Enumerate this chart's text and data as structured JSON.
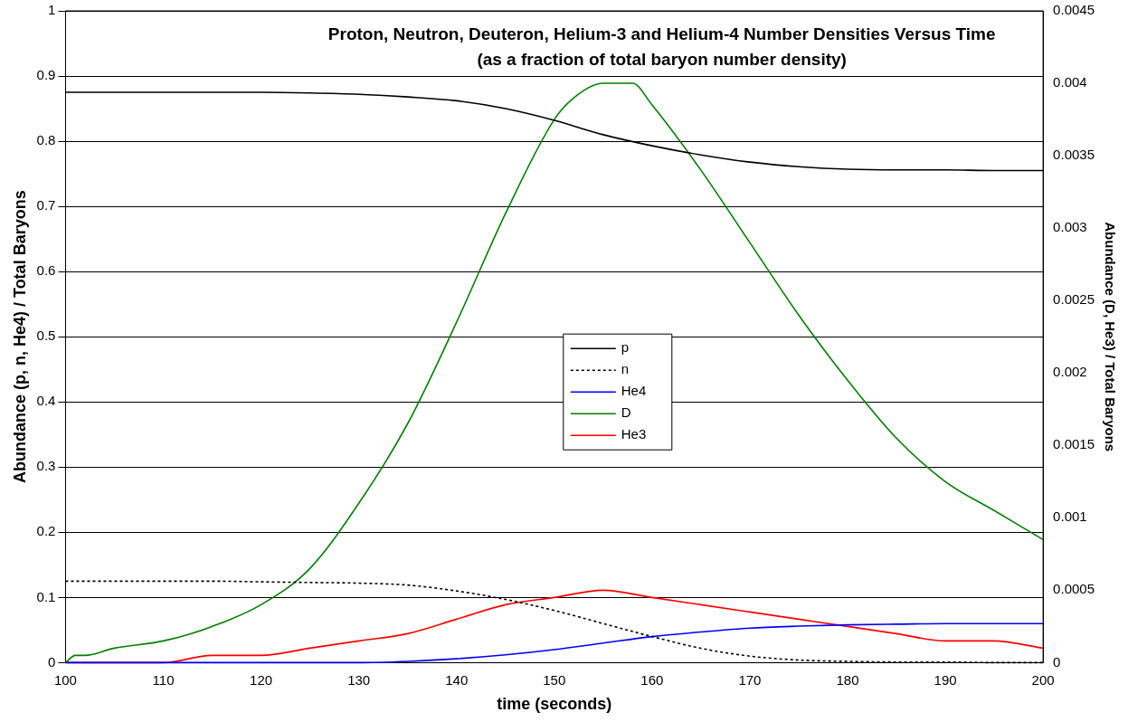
{
  "chart_data": {
    "type": "line",
    "title": "Proton, Neutron, Deuteron, Helium-3 and Helium-4 Number Densities Versus Time",
    "subtitle": "(as a fraction of total baryon number density)",
    "xlabel": "time (seconds)",
    "ylabel": "Abundance (p, n, He4) / Total Baryons",
    "y2label": "Abundance (D, He3) / Total Baryons",
    "xlim": [
      100,
      200
    ],
    "xticks": [
      100,
      110,
      120,
      130,
      140,
      150,
      160,
      170,
      180,
      190,
      200
    ],
    "ylim": [
      0,
      1
    ],
    "yticks": [
      0,
      0.1,
      0.2,
      0.3,
      0.4,
      0.5,
      0.6,
      0.7,
      0.8,
      0.9,
      1
    ],
    "y2lim": [
      0,
      0.0045
    ],
    "y2ticks": [
      0,
      0.0005,
      0.001,
      0.0015,
      0.002,
      0.0025,
      0.003,
      0.0035,
      0.004,
      0.0045
    ],
    "grid": "y",
    "legend": "center",
    "marker": "none",
    "line_style": "solid",
    "x": [
      100,
      105,
      110,
      115,
      120,
      125,
      130,
      135,
      140,
      145,
      150,
      155,
      160,
      165,
      170,
      175,
      180,
      185,
      190,
      195,
      200
    ],
    "series": [
      {
        "name": "p",
        "color": "#000000",
        "values": [
          0.875,
          0.875,
          0.875,
          0.875,
          0.875,
          0.874,
          0.872,
          0.868,
          0.862,
          0.85,
          0.832,
          0.81,
          0.793,
          0.779,
          0.768,
          0.761,
          0.757,
          0.756,
          0.756,
          0.755,
          0.755
        ]
      },
      {
        "name": "n",
        "color": "#000000",
        "line_style": "dotted",
        "values": [
          0.125,
          0.125,
          0.125,
          0.125,
          0.124,
          0.123,
          0.122,
          0.119,
          0.11,
          0.097,
          0.08,
          0.06,
          0.04,
          0.022,
          0.01,
          0.004,
          0.002,
          0.001,
          0.001,
          0,
          0
        ]
      },
      {
        "name": "He4",
        "color": "#0000ff",
        "values": [
          0,
          0,
          0,
          0,
          0,
          0,
          0,
          0.002,
          0.006,
          0.012,
          0.02,
          0.03,
          0.04,
          0.047,
          0.053,
          0.056,
          0.058,
          0.059,
          0.06,
          0.06,
          0.06
        ]
      },
      {
        "name": "D",
        "color": "#008000",
        "axis": "y2",
        "x": [
          100,
          101,
          102,
          105,
          110,
          115,
          120,
          125,
          130,
          135,
          140,
          145,
          150,
          152,
          155,
          158,
          160,
          165,
          170,
          175,
          180,
          185,
          190,
          195,
          200
        ],
        "values": [
          0,
          5e-05,
          5e-05,
          0.0001,
          0.00015,
          0.00025,
          0.0004,
          0.00065,
          0.0011,
          0.00165,
          0.00235,
          0.0031,
          0.00375,
          0.0039,
          0.004,
          0.004,
          0.00385,
          0.0034,
          0.0029,
          0.0024,
          0.00195,
          0.00155,
          0.00125,
          0.00105,
          0.00085
        ]
      },
      {
        "name": "He3",
        "color": "#ff0000",
        "axis": "y2",
        "values": [
          0,
          0,
          0,
          5e-05,
          5e-05,
          0.0001,
          0.00015,
          0.0002,
          0.0003,
          0.0004,
          0.00045,
          0.0005,
          0.00045,
          0.0004,
          0.00035,
          0.0003,
          0.00025,
          0.0002,
          0.00015,
          0.00015,
          0.0001
        ]
      }
    ]
  }
}
